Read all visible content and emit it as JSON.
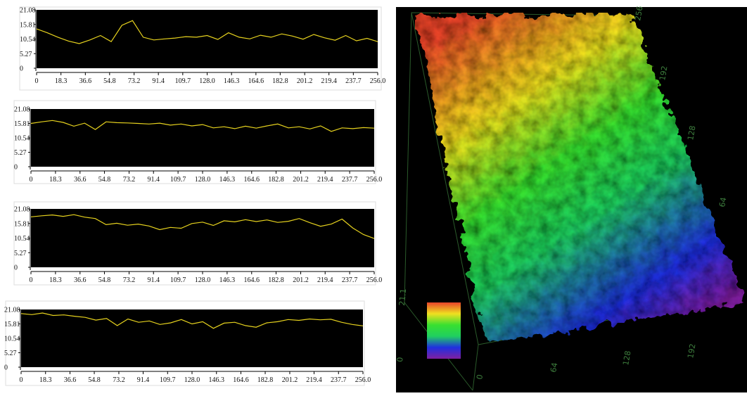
{
  "chart_data": [
    {
      "type": "line",
      "color": "#e6d21e",
      "ylim": [
        0,
        21.08
      ],
      "yticks": [
        0,
        5.27,
        10.54,
        15.81,
        21.08
      ],
      "xlim": [
        0,
        256
      ],
      "xticks": [
        0,
        18.3,
        36.6,
        54.8,
        73.2,
        91.4,
        109.7,
        {
          "value": 128,
          "label": "128.0"
        },
        146.3,
        164.6,
        182.8,
        201.2,
        219.4,
        237.7,
        {
          "value": 256,
          "label": "256.0"
        }
      ],
      "x": [
        0,
        8,
        16,
        24,
        32,
        40,
        48,
        56,
        64,
        72,
        80,
        88,
        96,
        104,
        112,
        120,
        128,
        136,
        144,
        152,
        160,
        168,
        176,
        184,
        192,
        200,
        208,
        216,
        224,
        232,
        240,
        248,
        256
      ],
      "values": [
        14.2,
        12.8,
        11.2,
        9.8,
        8.9,
        10.2,
        11.8,
        9.6,
        15.5,
        17.2,
        11.2,
        10.2,
        10.6,
        10.9,
        11.4,
        11.2,
        11.8,
        10.4,
        12.8,
        11.2,
        10.6,
        11.9,
        11.2,
        12.4,
        11.6,
        10.5,
        12.2,
        11.0,
        10.1,
        11.8,
        9.9,
        10.8,
        9.6
      ]
    },
    {
      "type": "line",
      "color": "#e6d21e",
      "ylim": [
        0,
        21.08
      ],
      "yticks": [
        0,
        5.27,
        10.54,
        15.81,
        21.08
      ],
      "xlim": [
        0,
        256
      ],
      "xticks": [
        0,
        18.3,
        36.6,
        54.8,
        73.2,
        91.4,
        109.7,
        {
          "value": 128,
          "label": "128.0"
        },
        146.3,
        164.6,
        182.8,
        201.2,
        219.4,
        237.7,
        {
          "value": 256,
          "label": "256.0"
        }
      ],
      "x": [
        0,
        8,
        16,
        24,
        32,
        40,
        48,
        56,
        64,
        72,
        80,
        88,
        96,
        104,
        112,
        120,
        128,
        136,
        144,
        152,
        160,
        168,
        176,
        184,
        192,
        200,
        208,
        216,
        224,
        232,
        240,
        248,
        256
      ],
      "values": [
        15.8,
        16.4,
        16.9,
        16.2,
        14.8,
        15.9,
        13.6,
        16.4,
        16.1,
        16.0,
        15.8,
        15.6,
        15.9,
        15.2,
        15.6,
        14.9,
        15.4,
        14.2,
        14.6,
        13.9,
        14.8,
        14.1,
        14.9,
        15.6,
        14.2,
        14.6,
        13.8,
        14.9,
        12.9,
        14.2,
        13.9,
        14.3,
        14.1
      ]
    },
    {
      "type": "line",
      "color": "#e6d21e",
      "ylim": [
        0,
        21.08
      ],
      "yticks": [
        0,
        5.27,
        10.54,
        15.81,
        21.08
      ],
      "xlim": [
        0,
        256
      ],
      "xticks": [
        0,
        18.3,
        36.6,
        54.8,
        73.2,
        91.4,
        109.7,
        {
          "value": 128,
          "label": "128.0"
        },
        146.3,
        164.6,
        182.8,
        201.2,
        219.4,
        237.7,
        {
          "value": 256,
          "label": "256.0"
        }
      ],
      "x": [
        0,
        8,
        16,
        24,
        32,
        40,
        48,
        56,
        64,
        72,
        80,
        88,
        96,
        104,
        112,
        120,
        128,
        136,
        144,
        152,
        160,
        168,
        176,
        184,
        192,
        200,
        208,
        216,
        224,
        232,
        240,
        248,
        256
      ],
      "values": [
        18.2,
        18.6,
        18.9,
        18.4,
        19.0,
        18.1,
        17.6,
        15.4,
        15.9,
        15.2,
        15.6,
        14.9,
        13.6,
        14.4,
        14.1,
        15.8,
        16.3,
        15.1,
        16.8,
        16.4,
        17.2,
        16.5,
        17.1,
        16.2,
        16.6,
        17.6,
        16.1,
        14.8,
        15.6,
        17.4,
        14.2,
        11.8,
        10.4
      ]
    },
    {
      "type": "line",
      "color": "#e6d21e",
      "ylim": [
        0,
        21.08
      ],
      "yticks": [
        0,
        5.27,
        10.54,
        15.81,
        21.08
      ],
      "xlim": [
        0,
        256
      ],
      "xticks": [
        0,
        18.3,
        36.6,
        54.8,
        73.2,
        91.4,
        109.7,
        {
          "value": 128,
          "label": "128.0"
        },
        146.3,
        164.6,
        182.8,
        201.2,
        219.4,
        237.7,
        {
          "value": 256,
          "label": "256.0"
        }
      ],
      "x": [
        0,
        8,
        16,
        24,
        32,
        40,
        48,
        56,
        64,
        72,
        80,
        88,
        96,
        104,
        112,
        120,
        128,
        136,
        144,
        152,
        160,
        168,
        176,
        184,
        192,
        200,
        208,
        216,
        224,
        232,
        240,
        248,
        256
      ],
      "values": [
        19.6,
        19.2,
        19.8,
        18.9,
        19.1,
        18.6,
        18.2,
        17.2,
        17.8,
        15.2,
        17.6,
        16.4,
        16.9,
        15.6,
        16.2,
        17.4,
        15.8,
        16.6,
        14.2,
        16.1,
        16.4,
        15.2,
        14.6,
        16.2,
        16.6,
        17.4,
        17.1,
        17.6,
        17.3,
        17.5,
        16.4,
        15.6,
        15.1
      ]
    },
    {
      "type": "surface",
      "xticks": [
        0,
        64,
        128,
        192
      ],
      "yticks": [
        64,
        128,
        192,
        256
      ],
      "zticks": [
        0,
        21.1
      ],
      "colors": [
        "#e8442a",
        "#f0e020",
        "#38e030",
        "#20d060",
        "#2030e0",
        "#8020a0"
      ]
    }
  ]
}
